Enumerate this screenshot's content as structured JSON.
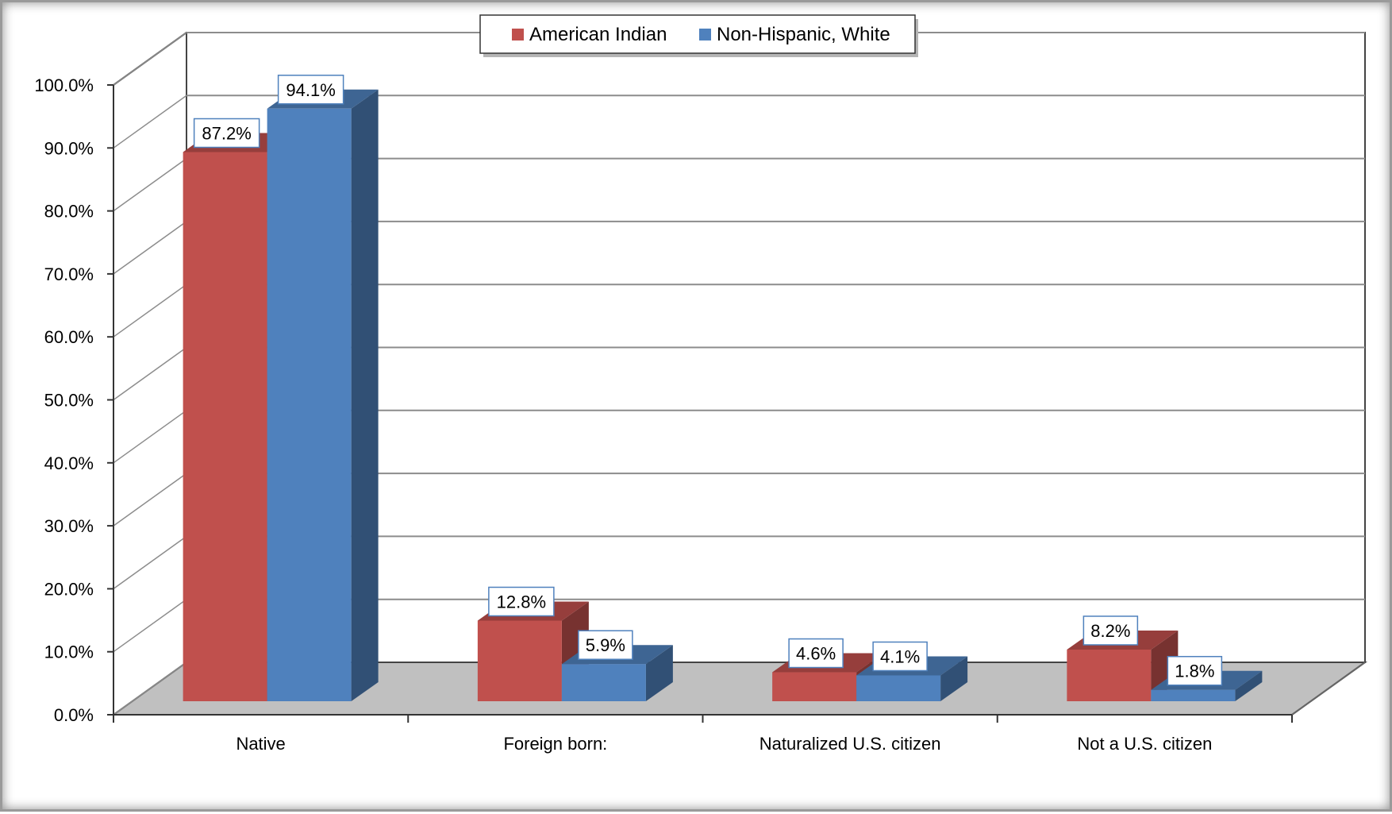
{
  "chart_data": {
    "type": "bar",
    "style": "3d-clustered-column",
    "categories": [
      "Native",
      "Foreign born:",
      "Naturalized U.S. citizen",
      "Not a U.S. citizen"
    ],
    "series": [
      {
        "name": "American Indian",
        "color": "#c0504d",
        "values": [
          87.2,
          12.8,
          4.6,
          8.2
        ],
        "labels": [
          "87.2%",
          "12.8%",
          "4.6%",
          "8.2%"
        ]
      },
      {
        "name": "Non-Hispanic, White",
        "color": "#4f81bd",
        "values": [
          94.1,
          5.9,
          4.1,
          1.8
        ],
        "labels": [
          "94.1%",
          "5.9%",
          "4.1%",
          "1.8%"
        ]
      }
    ],
    "yticks": [
      "0.0%",
      "10.0%",
      "20.0%",
      "30.0%",
      "40.0%",
      "50.0%",
      "60.0%",
      "70.0%",
      "80.0%",
      "90.0%",
      "100.0%"
    ],
    "ylim": [
      0,
      100
    ],
    "grid": true,
    "legend_position": "top",
    "floor_color": "#c0c0c0"
  }
}
